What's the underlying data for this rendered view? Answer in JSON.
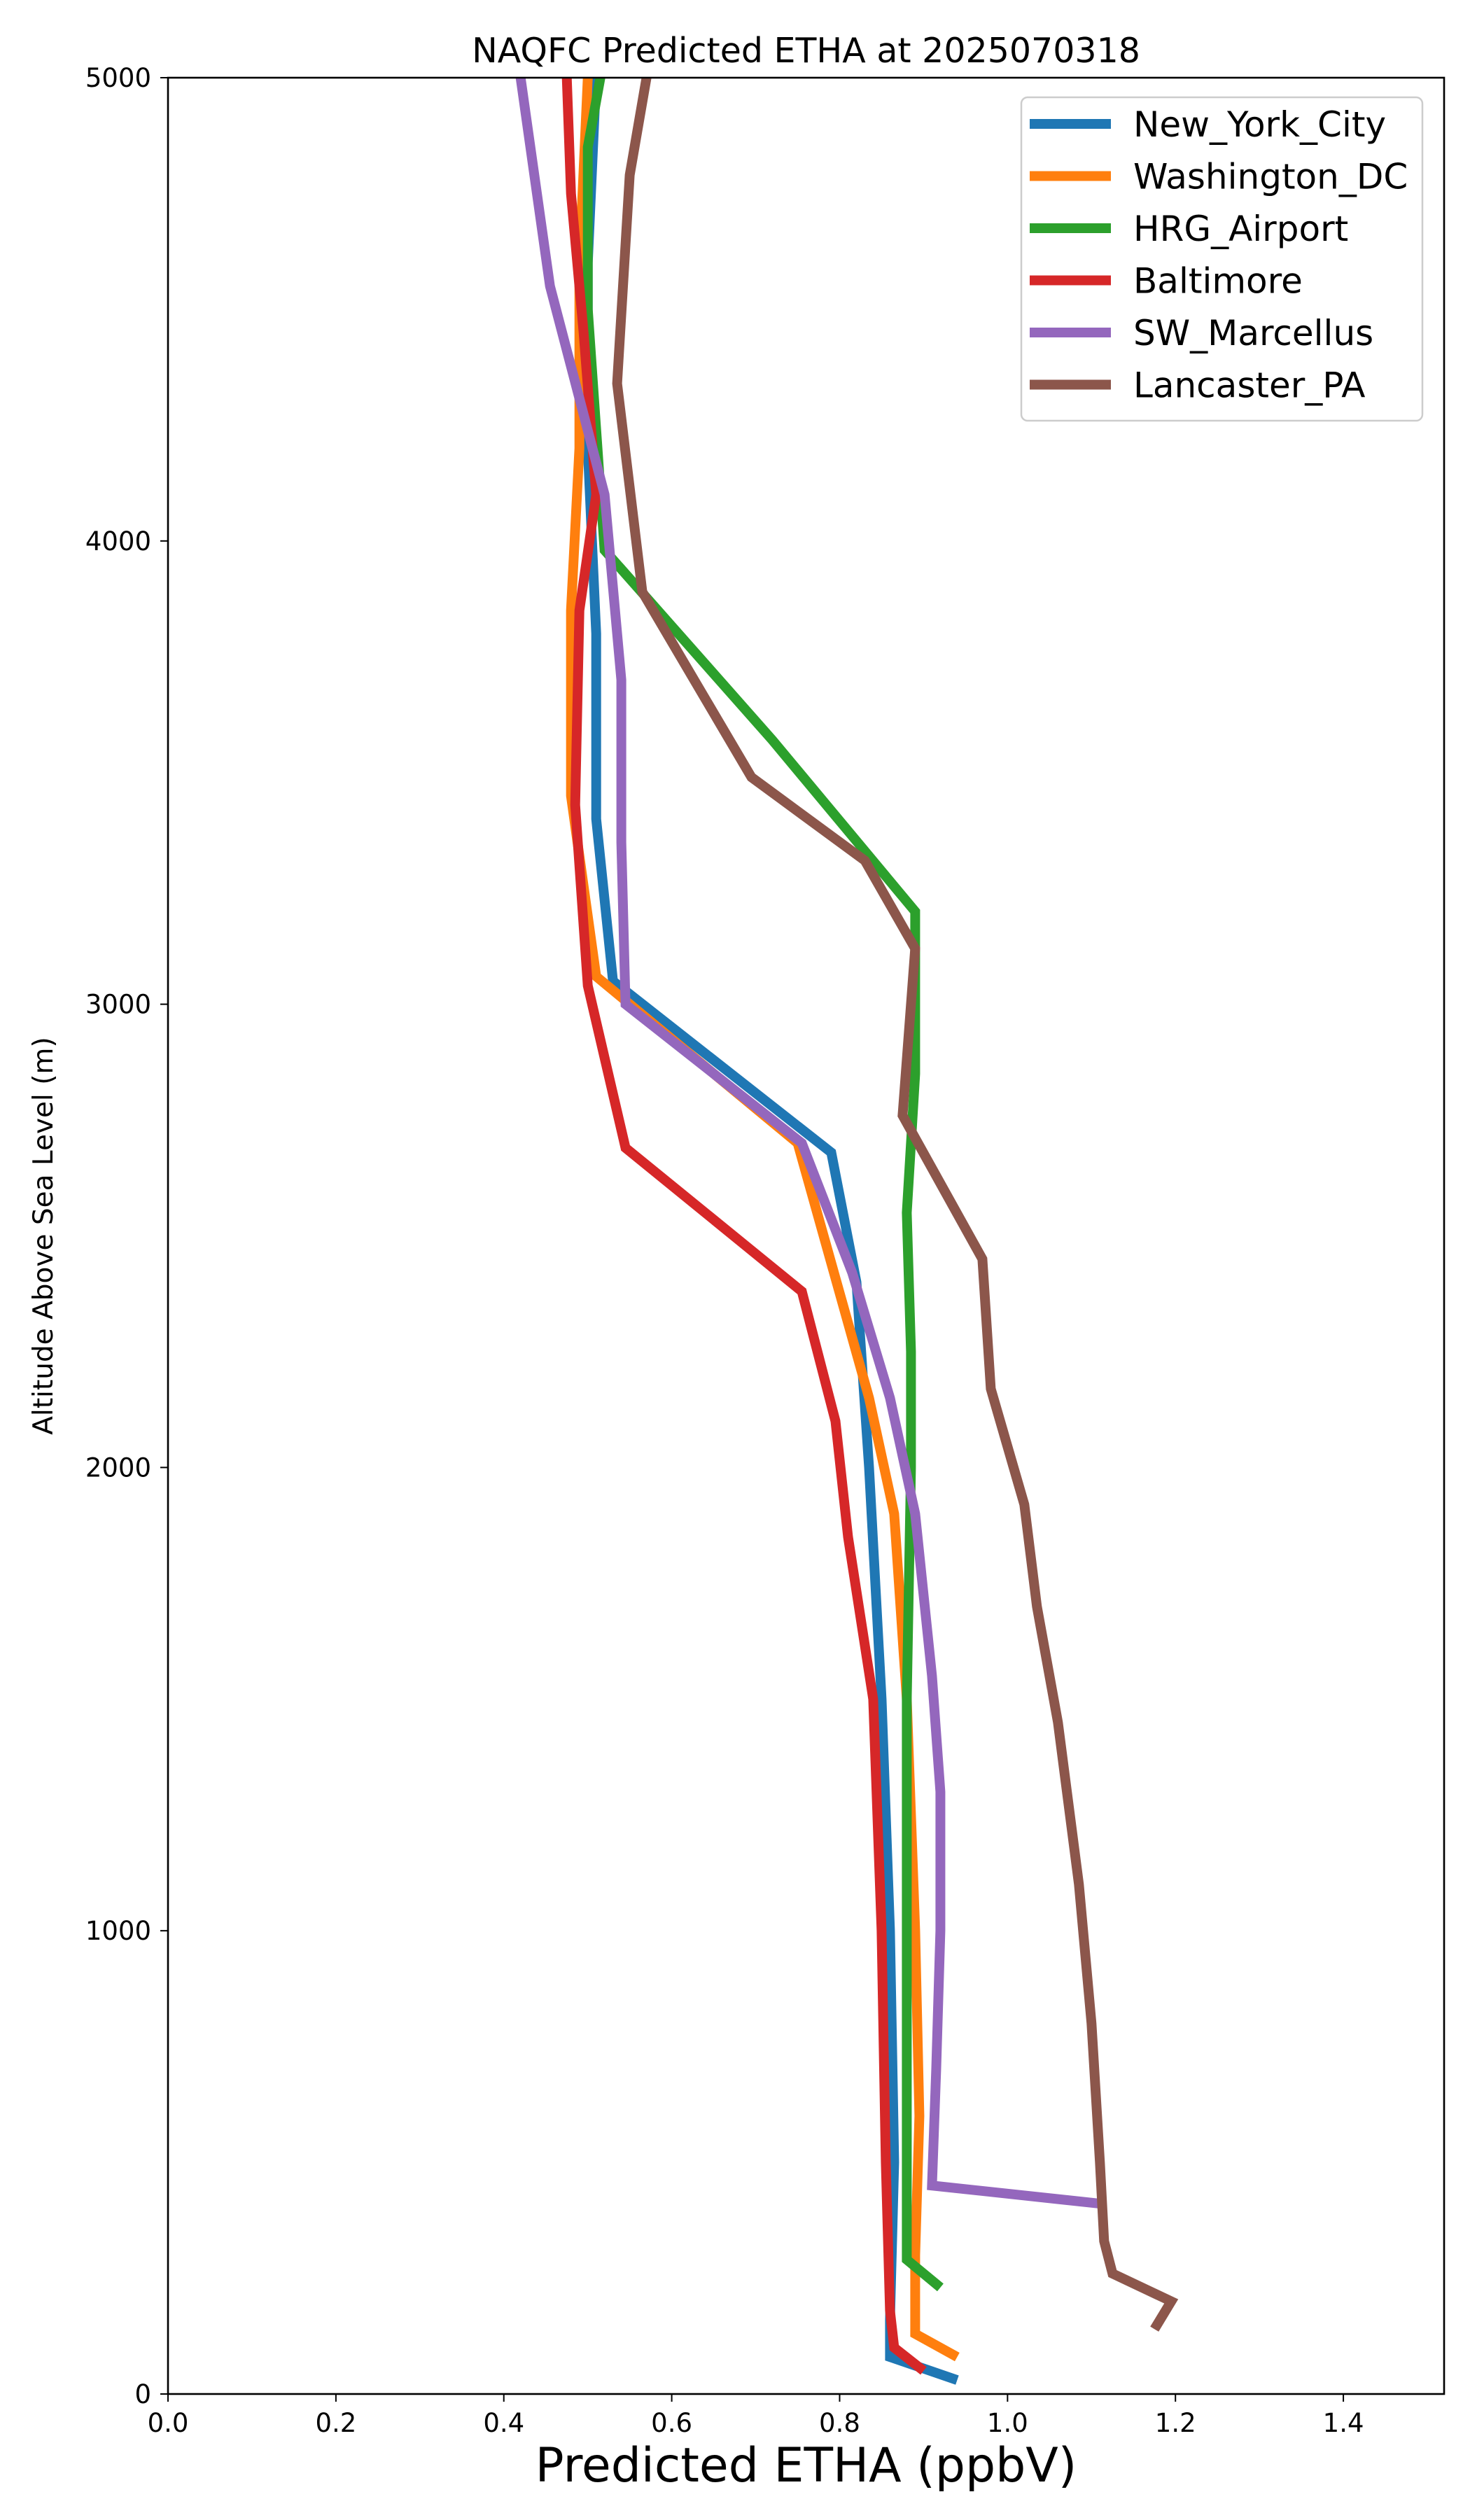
{
  "chart_data": {
    "type": "line",
    "title": "NAQFC Predicted ETHA at 2025070318",
    "xlabel": "Predicted ETHA (ppbV)",
    "ylabel": "Altitude Above Sea Level (m)",
    "xlim": [
      0.0,
      1.52
    ],
    "ylim": [
      0,
      5000
    ],
    "xticks": [
      0.0,
      0.2,
      0.4,
      0.6,
      0.8,
      1.0,
      1.2,
      1.4
    ],
    "xtick_labels": [
      "0.0",
      "0.2",
      "0.4",
      "0.6",
      "0.8",
      "1.0",
      "1.2",
      "1.4"
    ],
    "yticks": [
      0,
      1000,
      2000,
      3000,
      4000,
      5000
    ],
    "ytick_labels": [
      "0",
      "1000",
      "2000",
      "3000",
      "4000",
      "5000"
    ],
    "grid": false,
    "legend_position": "top-right",
    "series": [
      {
        "name": "New_York_City",
        "color": "#1f77b4",
        "points": [
          [
            0.94,
            30
          ],
          [
            0.86,
            80
          ],
          [
            0.86,
            160
          ],
          [
            0.865,
            500
          ],
          [
            0.86,
            1000
          ],
          [
            0.85,
            1500
          ],
          [
            0.835,
            2000
          ],
          [
            0.82,
            2400
          ],
          [
            0.79,
            2680
          ],
          [
            0.53,
            3050
          ],
          [
            0.51,
            3400
          ],
          [
            0.51,
            3800
          ],
          [
            0.5,
            4200
          ],
          [
            0.5,
            4600
          ],
          [
            0.51,
            5000
          ]
        ]
      },
      {
        "name": "Washington_DC",
        "color": "#ff7f0e",
        "points": [
          [
            0.94,
            80
          ],
          [
            0.89,
            130
          ],
          [
            0.89,
            300
          ],
          [
            0.895,
            600
          ],
          [
            0.89,
            1000
          ],
          [
            0.88,
            1500
          ],
          [
            0.865,
            1900
          ],
          [
            0.835,
            2150
          ],
          [
            0.75,
            2700
          ],
          [
            0.51,
            3060
          ],
          [
            0.48,
            3450
          ],
          [
            0.48,
            3850
          ],
          [
            0.49,
            4200
          ],
          [
            0.49,
            4600
          ],
          [
            0.5,
            5000
          ]
        ]
      },
      {
        "name": "HRG_Airport",
        "color": "#2ca02c",
        "points": [
          [
            0.92,
            230
          ],
          [
            0.88,
            290
          ],
          [
            0.88,
            600
          ],
          [
            0.88,
            1000
          ],
          [
            0.88,
            1500
          ],
          [
            0.885,
            2000
          ],
          [
            0.885,
            2250
          ],
          [
            0.88,
            2550
          ],
          [
            0.89,
            2850
          ],
          [
            0.89,
            3200
          ],
          [
            0.72,
            3570
          ],
          [
            0.52,
            3980
          ],
          [
            0.5,
            4500
          ],
          [
            0.5,
            4850
          ],
          [
            0.515,
            5000
          ]
        ]
      },
      {
        "name": "Baltimore",
        "color": "#d62728",
        "points": [
          [
            0.9,
            50
          ],
          [
            0.865,
            100
          ],
          [
            0.86,
            180
          ],
          [
            0.855,
            500
          ],
          [
            0.85,
            1000
          ],
          [
            0.84,
            1500
          ],
          [
            0.81,
            1850
          ],
          [
            0.795,
            2100
          ],
          [
            0.755,
            2380
          ],
          [
            0.545,
            2690
          ],
          [
            0.5,
            3040
          ],
          [
            0.485,
            3430
          ],
          [
            0.49,
            3850
          ],
          [
            0.51,
            4100
          ],
          [
            0.495,
            4450
          ],
          [
            0.48,
            4750
          ],
          [
            0.475,
            5000
          ]
        ]
      },
      {
        "name": "SW_Marcellus",
        "color": "#9467bd",
        "points": [
          [
            1.115,
            410
          ],
          [
            0.91,
            450
          ],
          [
            0.915,
            700
          ],
          [
            0.92,
            1000
          ],
          [
            0.92,
            1300
          ],
          [
            0.91,
            1550
          ],
          [
            0.89,
            1900
          ],
          [
            0.86,
            2150
          ],
          [
            0.815,
            2420
          ],
          [
            0.755,
            2700
          ],
          [
            0.545,
            3000
          ],
          [
            0.54,
            3350
          ],
          [
            0.54,
            3700
          ],
          [
            0.52,
            4100
          ],
          [
            0.455,
            4550
          ],
          [
            0.42,
            5000
          ]
        ]
      },
      {
        "name": "Lancaster_PA",
        "color": "#8c564b",
        "points": [
          [
            1.175,
            140
          ],
          [
            1.195,
            200
          ],
          [
            1.125,
            260
          ],
          [
            1.115,
            330
          ],
          [
            1.11,
            500
          ],
          [
            1.1,
            800
          ],
          [
            1.085,
            1100
          ],
          [
            1.06,
            1450
          ],
          [
            1.035,
            1700
          ],
          [
            1.02,
            1920
          ],
          [
            0.98,
            2170
          ],
          [
            0.97,
            2450
          ],
          [
            0.875,
            2760
          ],
          [
            0.89,
            3120
          ],
          [
            0.83,
            3310
          ],
          [
            0.695,
            3490
          ],
          [
            0.565,
            3890
          ],
          [
            0.535,
            4340
          ],
          [
            0.55,
            4790
          ],
          [
            0.57,
            5000
          ]
        ]
      }
    ]
  }
}
